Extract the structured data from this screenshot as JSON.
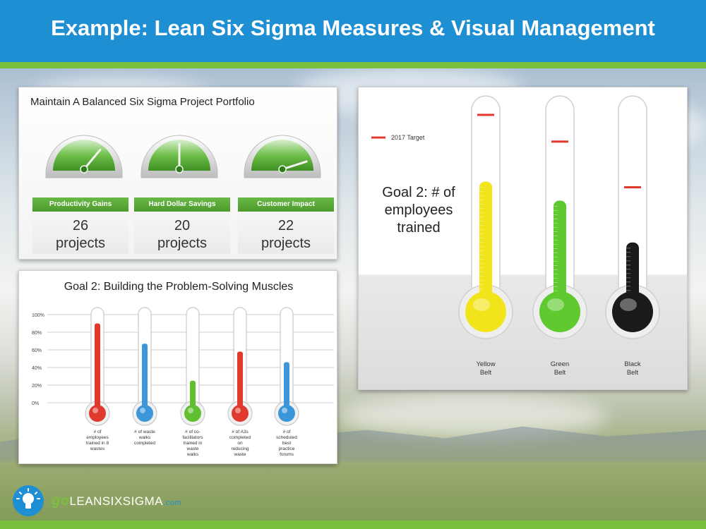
{
  "header": {
    "title": "Example: Lean Six Sigma Measures & Visual Management"
  },
  "portfolio": {
    "title": "Maintain A Balanced Six Sigma Project Portfolio",
    "gauges": [
      {
        "label": "Productivity Gains",
        "number": "26",
        "unit": "projects",
        "needle": 0.72
      },
      {
        "label": "Hard Dollar Savings",
        "number": "20",
        "unit": "projects",
        "needle": 0.5
      },
      {
        "label": "Customer Impact",
        "number": "22",
        "unit": "projects",
        "needle": 0.9
      }
    ]
  },
  "chart_data": [
    {
      "type": "bar",
      "title": "Goal 2: Building the Problem-Solving Muscles",
      "categories": [
        "# of employees trained in 8 wastes",
        "# of waste walks completed",
        "# of co-facilitators trained in waste walks",
        "# of A3s completed on reducing waste",
        "# of scheduled best practice forums"
      ],
      "category_lines": [
        [
          "# of",
          "employees",
          "trained in 8",
          "wastes"
        ],
        [
          "# of waste",
          "walks",
          "completed"
        ],
        [
          "# of co-",
          "facilitators",
          "trained in",
          "waste",
          "walks"
        ],
        [
          "# of A3s",
          "completed",
          "on",
          "reducing",
          "waste"
        ],
        [
          "# of",
          "scheduled",
          "best",
          "practice",
          "forums"
        ]
      ],
      "values": [
        90,
        67,
        25,
        58,
        46
      ],
      "colors": [
        "#e03a2f",
        "#3b97d9",
        "#5fbf2f",
        "#e03a2f",
        "#3b97d9"
      ],
      "ylim": [
        0,
        100
      ],
      "yticks": [
        "0%",
        "20%",
        "40%",
        "60%",
        "80%",
        "100%"
      ],
      "grid": true
    },
    {
      "type": "bar",
      "title": "Goal 2: # of employees trained",
      "title_lines": [
        "Goal 2: # of",
        "employees",
        "trained"
      ],
      "categories": [
        "Yellow Belt",
        "Green Belt",
        "Black Belt"
      ],
      "category_lines": [
        [
          "Yellow",
          "Belt"
        ],
        [
          "Green",
          "Belt"
        ],
        [
          "Black",
          "Belt"
        ]
      ],
      "values": [
        0.58,
        0.48,
        0.26
      ],
      "targets": [
        0.93,
        0.79,
        0.55
      ],
      "colors": [
        "#f2e41b",
        "#5fc92f",
        "#1a1a1a"
      ],
      "legend": {
        "label": "2017 Target",
        "color": "#e03a2f",
        "placement": "top-left"
      }
    }
  ],
  "logo": {
    "go": "go",
    "name": "LEANSIXSIGMA",
    "domain": ".com"
  }
}
